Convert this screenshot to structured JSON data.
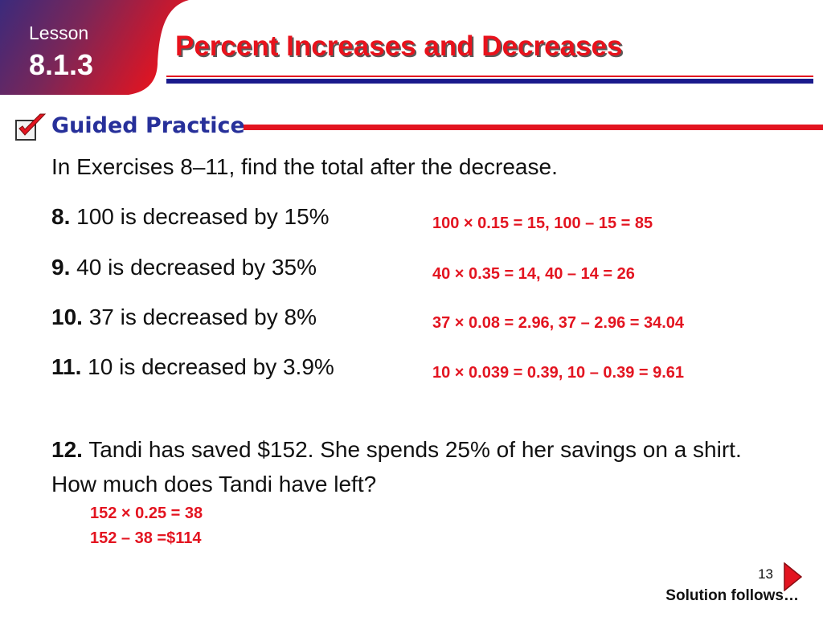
{
  "header": {
    "lesson_word": "Lesson",
    "lesson_number": "8.1.3",
    "title": "Percent Increases and Decreases"
  },
  "section": {
    "label": "Guided Practice",
    "check_icon": "checkbox-check-icon"
  },
  "intro": "In Exercises 8–11, find the total after the decrease.",
  "exercises": [
    {
      "num": "8.",
      "text": " 100 is decreased by 15%",
      "answer": "100 × 0.15 = 15, 100 – 15 = 85"
    },
    {
      "num": "9.",
      "text": " 40 is decreased by 35%",
      "answer": "40 × 0.35 = 14, 40 – 14 = 26"
    },
    {
      "num": "10.",
      "text": " 37 is decreased by 8%",
      "answer": "37 × 0.08 = 2.96, 37 – 2.96 = 34.04"
    },
    {
      "num": "11.",
      "text": " 10 is decreased by 3.9%",
      "answer": "10 × 0.039 = 0.39, 10 – 0.39 = 9.61"
    }
  ],
  "exercise12": {
    "num": "12.",
    "text": " Tandi has saved $152.  She spends 25% of her savings on a shirt.  How much does Tandi have left?",
    "answer_lines": [
      "152 × 0.25 = 38",
      "152 – 38 =$114"
    ]
  },
  "footer": {
    "page_number": "13",
    "next_icon": "triangle-right-icon",
    "solution_follows": "Solution follows…"
  },
  "colors": {
    "title_red": "#e8121c",
    "answer_red": "#e31420",
    "navy": "#1a1a8c",
    "badge_purple": "#4a2a7a",
    "badge_red": "#e31420"
  }
}
